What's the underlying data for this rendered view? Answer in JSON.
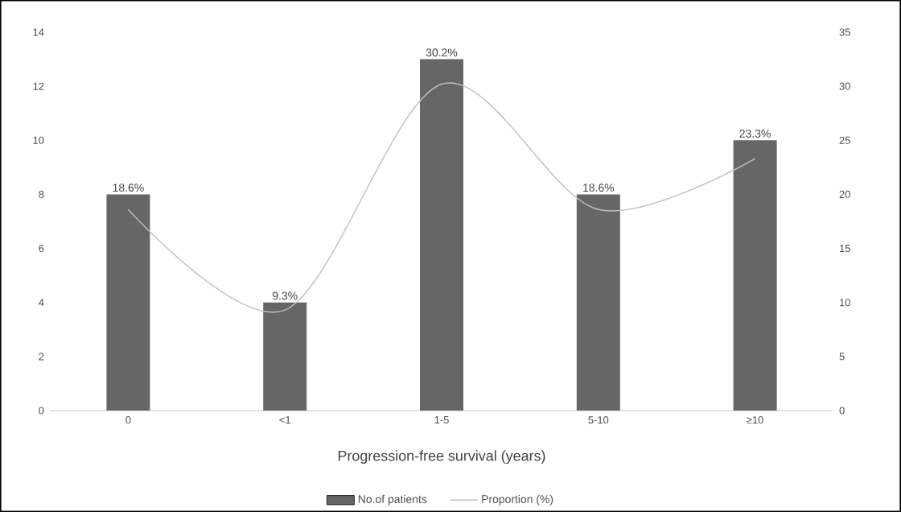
{
  "chart_data": {
    "type": "bar",
    "xlabel": "Progression-free survival (years)",
    "categories": [
      "0",
      "<1",
      "1-5",
      "5-10",
      "≥10"
    ],
    "series": [
      {
        "name": "No.of patients",
        "color": "#666666",
        "values": [
          8,
          4,
          13,
          8,
          10
        ]
      },
      {
        "name": "Proportion (%)",
        "type": "line",
        "axis": "y2",
        "color": "#c0c0c0",
        "values": [
          18.6,
          9.3,
          30.2,
          18.6,
          23.3
        ],
        "value_labels": [
          "18.6%",
          "9.3%",
          "30.2%",
          "18.6%",
          "23.3%"
        ]
      }
    ],
    "ylim": [
      0,
      14
    ],
    "yticks": [
      0,
      2,
      4,
      6,
      8,
      10,
      12,
      14
    ],
    "y2lim": [
      0,
      35
    ],
    "y2ticks": [
      0,
      5,
      10,
      15,
      20,
      25,
      30,
      35
    ],
    "legend": "bottom"
  }
}
